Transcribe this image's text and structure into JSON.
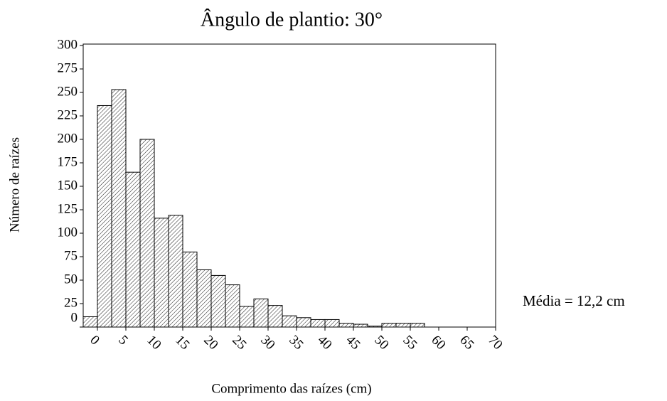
{
  "chart_data": {
    "type": "histogram",
    "title": "Ângulo de plantio: 30°",
    "x_label": "Comprimento das raízes (cm)",
    "y_label": "Número de raízes",
    "annotation": "Média = 12,2 cm",
    "bins": [
      -2.5,
      0,
      2.5,
      5,
      7.5,
      10,
      12.5,
      15,
      17.5,
      20,
      22.5,
      25,
      27.5,
      30,
      32.5,
      35,
      37.5,
      40,
      42.5,
      45,
      47.5,
      50,
      52.5,
      55,
      57.5,
      60,
      62.5,
      65,
      67.5,
      70
    ],
    "values": [
      11,
      236,
      253,
      165,
      200,
      116,
      119,
      80,
      61,
      55,
      45,
      22,
      30,
      23,
      12,
      10,
      8,
      8,
      4,
      3,
      1,
      4,
      4,
      4,
      0,
      0,
      0,
      0,
      0
    ],
    "color": "#ffffff",
    "xlim": [
      -2.5,
      70
    ],
    "ylim": [
      0,
      301.5
    ],
    "xticks": [
      0,
      5,
      10,
      15,
      20,
      25,
      30,
      35,
      40,
      45,
      50,
      55,
      60,
      65,
      70
    ],
    "yticks": [
      0,
      25,
      50,
      75,
      100,
      125,
      150,
      175,
      200,
      225,
      250,
      275,
      300
    ],
    "grid": false
  }
}
